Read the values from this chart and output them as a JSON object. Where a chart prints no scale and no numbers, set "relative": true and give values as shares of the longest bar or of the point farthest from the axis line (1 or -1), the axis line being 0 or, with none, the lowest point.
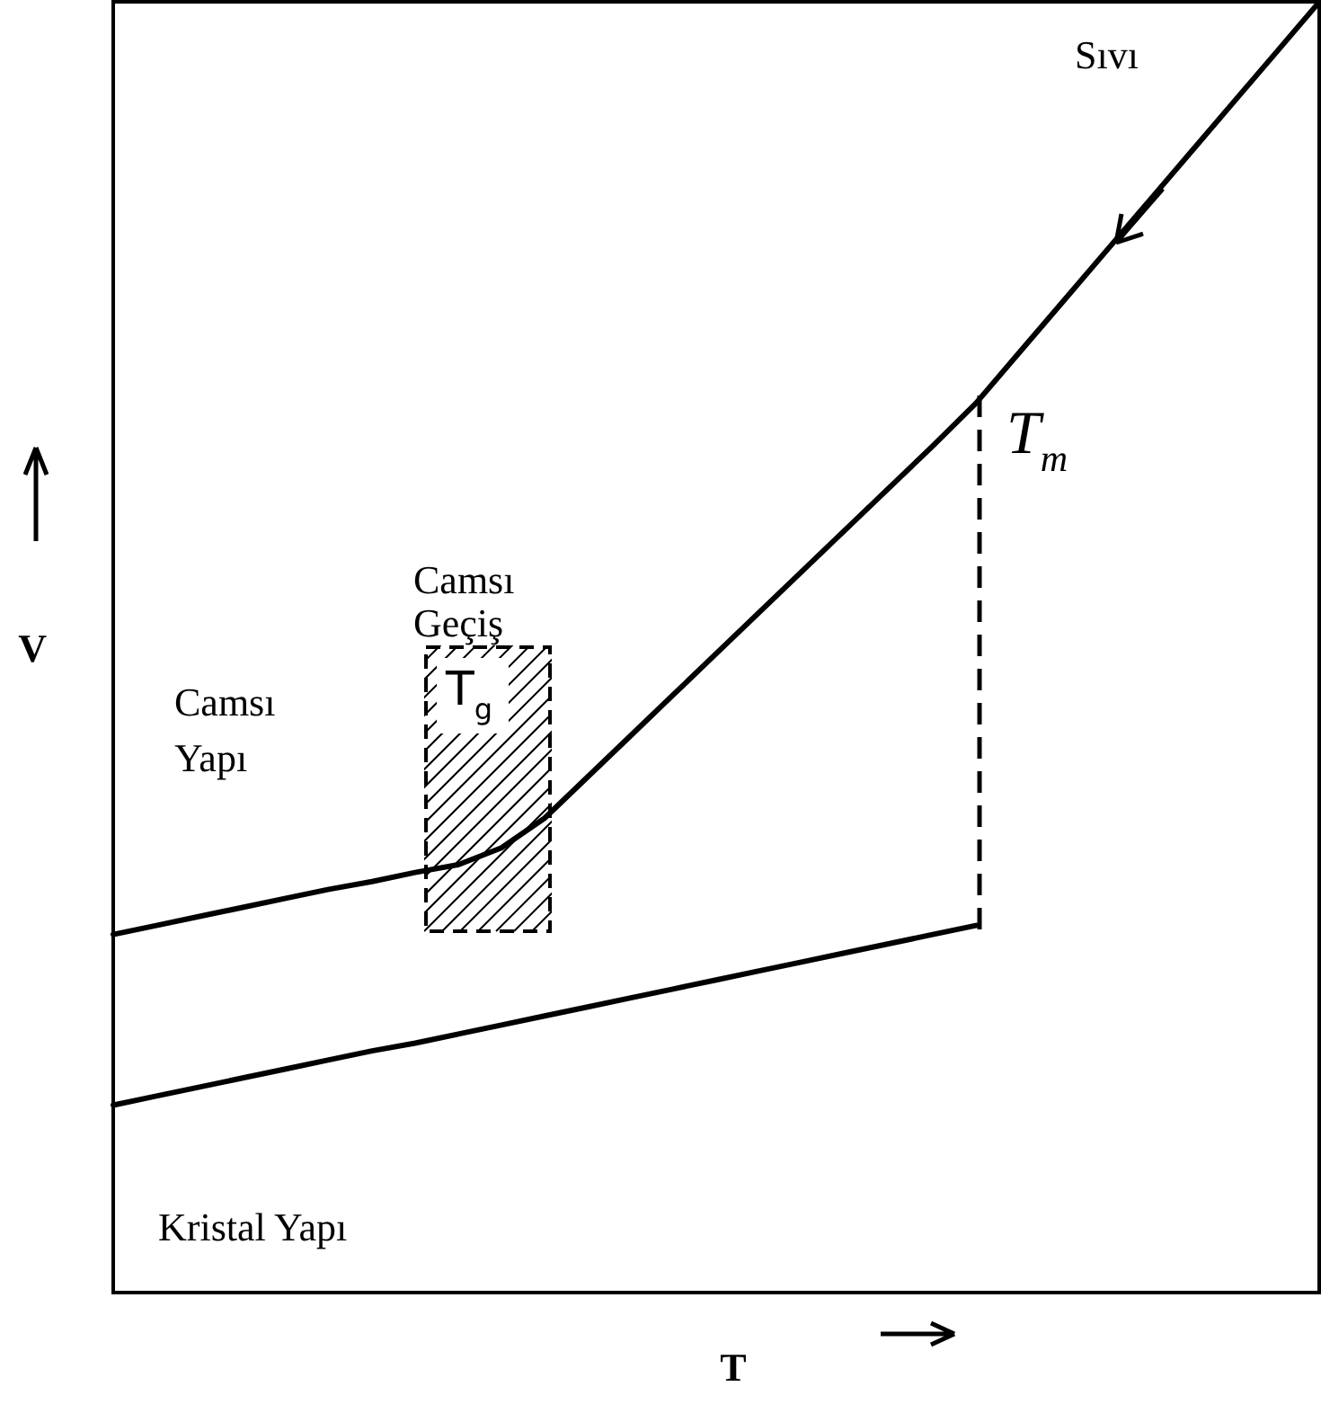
{
  "chart_data": {
    "type": "line",
    "relative": true,
    "xlabel": "T",
    "ylabel": "V",
    "legend": false,
    "marker": "none",
    "categories": [
      null,
      null,
      null,
      null,
      null,
      null,
      null,
      null,
      null,
      null,
      null,
      null,
      null,
      null,
      null,
      null,
      null,
      null,
      null,
      null,
      null,
      null,
      null,
      null,
      null,
      null,
      null,
      null,
      null
    ],
    "series": [
      {
        "color": "#000000",
        "values": [
          0.277,
          0.284,
          0.291,
          0.298,
          0.305,
          0.312,
          0.318,
          0.325,
          0.331,
          0.344,
          0.367,
          0.399,
          0.431,
          0.463,
          0.495,
          0.527,
          0.559,
          0.591,
          0.623,
          0.655,
          0.688,
          0.727,
          0.766,
          0.805,
          0.844,
          0.883,
          0.922,
          0.961,
          1
        ]
      },
      {
        "color": "#000000",
        "values": [
          0.145,
          0.152,
          0.159,
          0.166,
          0.173,
          0.18,
          0.187,
          0.193,
          0.2,
          0.207,
          0.214,
          0.221,
          0.228,
          0.235,
          0.242,
          0.249,
          0.256,
          0.263,
          0.27,
          0.277,
          0.284,
          null,
          null,
          null,
          null,
          null,
          null,
          null,
          null
        ]
      }
    ],
    "annotations": [
      "Sıvı",
      "Camsı Geçiş",
      "Camsı Yapı",
      "Kristal Yapı",
      "T$_{m}$",
      "T$_{g}$"
    ]
  }
}
